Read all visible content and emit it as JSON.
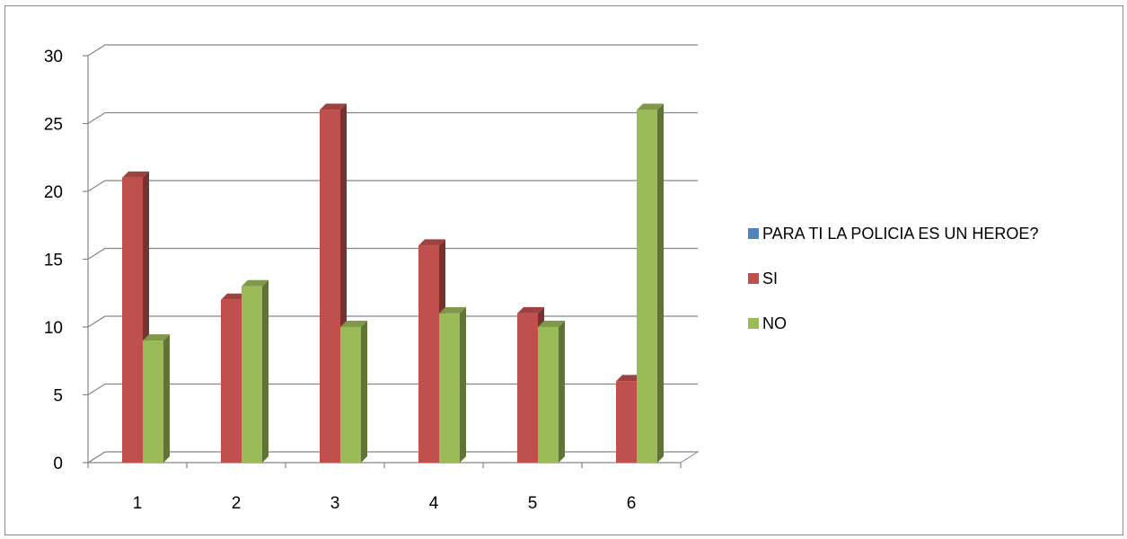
{
  "chart_data": {
    "type": "bar",
    "categories": [
      "1",
      "2",
      "3",
      "4",
      "5",
      "6"
    ],
    "series": [
      {
        "name": "PARA TI LA POLICIA ES UN HEROE?",
        "values": [
          0,
          0,
          0,
          0,
          0,
          0
        ],
        "color": "#4f81bd"
      },
      {
        "name": "SI",
        "values": [
          21,
          12,
          26,
          16,
          11,
          6
        ],
        "color": "#c0504d"
      },
      {
        "name": "NO",
        "values": [
          9,
          13,
          10,
          11,
          10,
          26
        ],
        "color": "#9bbb59"
      }
    ],
    "ylim": [
      0,
      30
    ],
    "yticks": [
      "0",
      "5",
      "10",
      "15",
      "20",
      "25",
      "30"
    ],
    "grid": true,
    "legend_position": "right",
    "style": "3d-clustered-column"
  }
}
